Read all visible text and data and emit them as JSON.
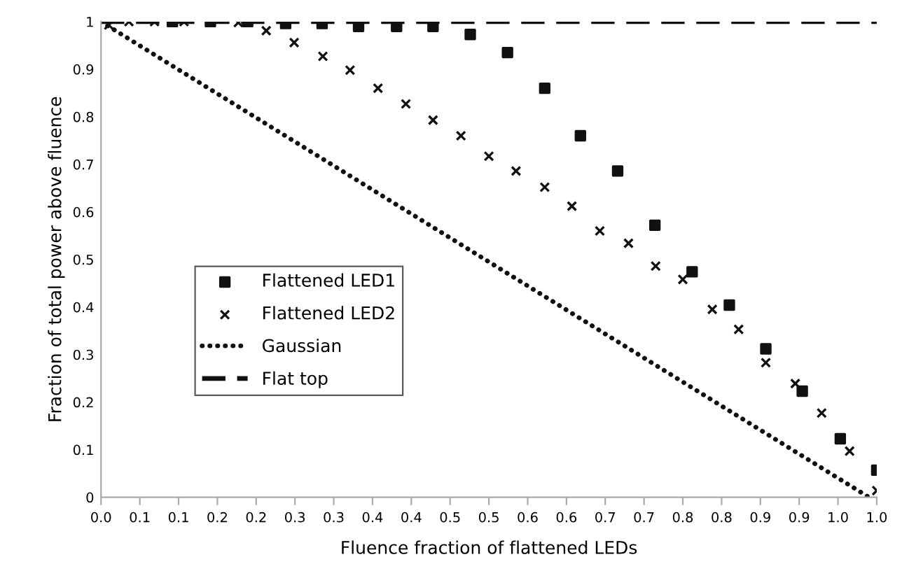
{
  "chart_data": {
    "type": "scatter",
    "xlabel": "Fluence fraction of flattened LEDs",
    "ylabel": "Fraction of total power above fluence",
    "xlim": [
      0,
      1.0
    ],
    "ylim": [
      0,
      1
    ],
    "xticks": [
      {
        "value": 0.0,
        "label": "0.0"
      },
      {
        "value": 0.05,
        "label": "0.1"
      },
      {
        "value": 0.1,
        "label": "0.1"
      },
      {
        "value": 0.15,
        "label": "0.2"
      },
      {
        "value": 0.2,
        "label": "0.2"
      },
      {
        "value": 0.25,
        "label": "0.3"
      },
      {
        "value": 0.3,
        "label": "0.3"
      },
      {
        "value": 0.35,
        "label": "0.4"
      },
      {
        "value": 0.4,
        "label": "0.4"
      },
      {
        "value": 0.45,
        "label": "0.5"
      },
      {
        "value": 0.5,
        "label": "0.5"
      },
      {
        "value": 0.55,
        "label": "0.6"
      },
      {
        "value": 0.6,
        "label": "0.6"
      },
      {
        "value": 0.65,
        "label": "0.7"
      },
      {
        "value": 0.7,
        "label": "0.7"
      },
      {
        "value": 0.75,
        "label": "0.8"
      },
      {
        "value": 0.8,
        "label": "0.8"
      },
      {
        "value": 0.85,
        "label": "0.9"
      },
      {
        "value": 0.9,
        "label": "0.9"
      },
      {
        "value": 0.95,
        "label": "1.0"
      },
      {
        "value": 1.0,
        "label": "1.0"
      }
    ],
    "yticks": [
      0,
      0.1,
      0.2,
      0.3,
      0.4,
      0.5,
      0.6,
      0.7,
      0.8,
      0.9,
      1
    ],
    "grid": false,
    "legend": "left",
    "series": [
      {
        "name": "Flattened LED1",
        "marker": "square",
        "color": "#111111",
        "x": [
          0.092,
          0.141,
          0.189,
          0.238,
          0.285,
          0.332,
          0.381,
          0.428,
          0.476,
          0.524,
          0.572,
          0.618,
          0.666,
          0.714,
          0.762,
          0.81,
          0.857,
          0.904,
          0.953,
          1.0
        ],
        "values": [
          1.0,
          1.0,
          1.0,
          0.996,
          0.996,
          0.99,
          0.99,
          0.99,
          0.973,
          0.935,
          0.86,
          0.76,
          0.686,
          0.572,
          0.474,
          0.404,
          0.312,
          0.223,
          0.123,
          0.057
        ]
      },
      {
        "name": "Flattened LED2",
        "marker": "cross",
        "color": "#111111",
        "x": [
          0.01,
          0.036,
          0.069,
          0.107,
          0.177,
          0.213,
          0.249,
          0.286,
          0.321,
          0.357,
          0.393,
          0.428,
          0.464,
          0.5,
          0.535,
          0.572,
          0.607,
          0.643,
          0.68,
          0.715,
          0.75,
          0.788,
          0.822,
          0.857,
          0.895,
          0.929,
          0.965,
          1.0
        ],
        "values": [
          0.993,
          1.0,
          1.0,
          1.0,
          0.998,
          0.981,
          0.956,
          0.927,
          0.898,
          0.86,
          0.827,
          0.793,
          0.76,
          0.717,
          0.686,
          0.652,
          0.612,
          0.56,
          0.534,
          0.486,
          0.458,
          0.395,
          0.353,
          0.283,
          0.239,
          0.177,
          0.097,
          0.014
        ]
      },
      {
        "name": "Gaussian",
        "type": "line",
        "line_style": "dotted",
        "color": "#111111",
        "x": [
          0.0,
          0.99
        ],
        "values": [
          1.0,
          0.0
        ]
      },
      {
        "name": "Flat top",
        "type": "line",
        "line_style": "dashed",
        "color": "#111111",
        "x": [
          0.0,
          1.0
        ],
        "values": [
          1.0,
          1.0
        ]
      }
    ]
  }
}
